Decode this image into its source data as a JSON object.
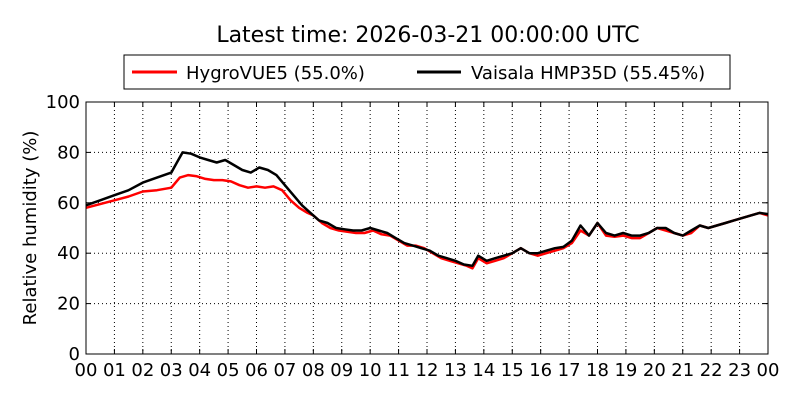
{
  "chart_data": {
    "type": "line",
    "title": "Latest time: 2026-03-21 00:00:00 UTC",
    "xlabel": "",
    "ylabel": "Relative humidity (%)",
    "xlim": [
      0,
      24
    ],
    "ylim": [
      0,
      100
    ],
    "grid": true,
    "legend_position": "top-center",
    "x_tick_labels": [
      "00",
      "01",
      "02",
      "03",
      "04",
      "05",
      "06",
      "07",
      "08",
      "09",
      "10",
      "11",
      "12",
      "13",
      "14",
      "15",
      "16",
      "17",
      "18",
      "19",
      "20",
      "21",
      "22",
      "23",
      "00"
    ],
    "y_tick_labels": [
      "0",
      "20",
      "40",
      "60",
      "80",
      "100"
    ],
    "series": [
      {
        "name": "HygroVUE5 (55.0%)",
        "color": "#ff0000",
        "x": [
          0,
          0.5,
          1,
          1.5,
          2,
          2.5,
          3,
          3.3,
          3.6,
          3.9,
          4.2,
          4.5,
          4.8,
          5.1,
          5.4,
          5.7,
          6,
          6.3,
          6.6,
          6.9,
          7.2,
          7.5,
          7.8,
          8,
          8.3,
          8.6,
          8.9,
          9.2,
          9.5,
          9.8,
          10.1,
          10.4,
          10.7,
          11,
          11.3,
          11.6,
          11.9,
          12.2,
          12.5,
          12.8,
          13.1,
          13.4,
          13.6,
          13.8,
          14.1,
          14.4,
          14.7,
          15,
          15.3,
          15.6,
          15.9,
          16.2,
          16.5,
          16.8,
          17.1,
          17.4,
          17.7,
          18,
          18.3,
          18.6,
          18.9,
          19.2,
          19.5,
          19.8,
          20.1,
          20.4,
          20.7,
          21,
          21.3,
          21.6,
          21.9,
          22.2,
          22.5,
          22.8,
          23.1,
          23.4,
          23.7,
          24
        ],
        "y": [
          58,
          59.5,
          61,
          62.5,
          64.5,
          65,
          66,
          70,
          71,
          70.5,
          69.5,
          69,
          69,
          68.5,
          67,
          66,
          66.5,
          66,
          66.5,
          65,
          61,
          58,
          56,
          55,
          52,
          50,
          49,
          48.5,
          48,
          48,
          49,
          47.5,
          47,
          45,
          43,
          43,
          42,
          40,
          38,
          37,
          36,
          35,
          34,
          38,
          36,
          37,
          38,
          40,
          42,
          40,
          39,
          40,
          41,
          42,
          44,
          49,
          47,
          52,
          47,
          46.5,
          47,
          46,
          46,
          48,
          50,
          49,
          48,
          47,
          48,
          51,
          50,
          51,
          52,
          53,
          54,
          55,
          56,
          55
        ]
      },
      {
        "name": "Vaisala HMP35D (55.45%)",
        "color": "#000000",
        "x": [
          0,
          0.5,
          1,
          1.5,
          2,
          2.5,
          3,
          3.2,
          3.4,
          3.7,
          4,
          4.3,
          4.6,
          4.9,
          5.2,
          5.5,
          5.8,
          6.1,
          6.4,
          6.7,
          7,
          7.3,
          7.6,
          7.9,
          8.2,
          8.5,
          8.8,
          9.1,
          9.4,
          9.7,
          10,
          10.3,
          10.6,
          10.9,
          11.2,
          11.5,
          11.8,
          12.1,
          12.4,
          12.7,
          13,
          13.3,
          13.6,
          13.8,
          14.1,
          14.4,
          14.7,
          15,
          15.3,
          15.6,
          15.9,
          16.2,
          16.5,
          16.8,
          17.1,
          17.4,
          17.7,
          18,
          18.3,
          18.6,
          18.9,
          19.2,
          19.5,
          19.8,
          20.1,
          20.4,
          20.7,
          21,
          21.3,
          21.6,
          21.9,
          22.2,
          22.5,
          22.8,
          23.1,
          23.4,
          23.7,
          24
        ],
        "y": [
          59,
          61,
          63,
          65,
          68,
          70,
          72,
          76,
          80,
          79.5,
          78,
          77,
          76,
          77,
          75,
          73,
          72,
          74,
          73,
          71,
          67,
          63,
          59,
          56,
          53,
          52,
          50,
          49.5,
          49,
          49,
          50,
          49,
          48,
          46,
          44,
          43,
          42,
          41,
          39,
          38,
          37,
          35.5,
          35,
          39,
          37,
          38,
          39,
          40,
          42,
          40,
          40,
          41,
          42,
          42.5,
          45,
          51,
          47,
          52,
          48,
          47,
          48,
          47,
          47,
          48,
          50,
          50,
          48,
          47,
          49,
          51,
          50,
          51,
          52,
          53,
          54,
          55,
          56,
          55.5
        ]
      }
    ]
  }
}
